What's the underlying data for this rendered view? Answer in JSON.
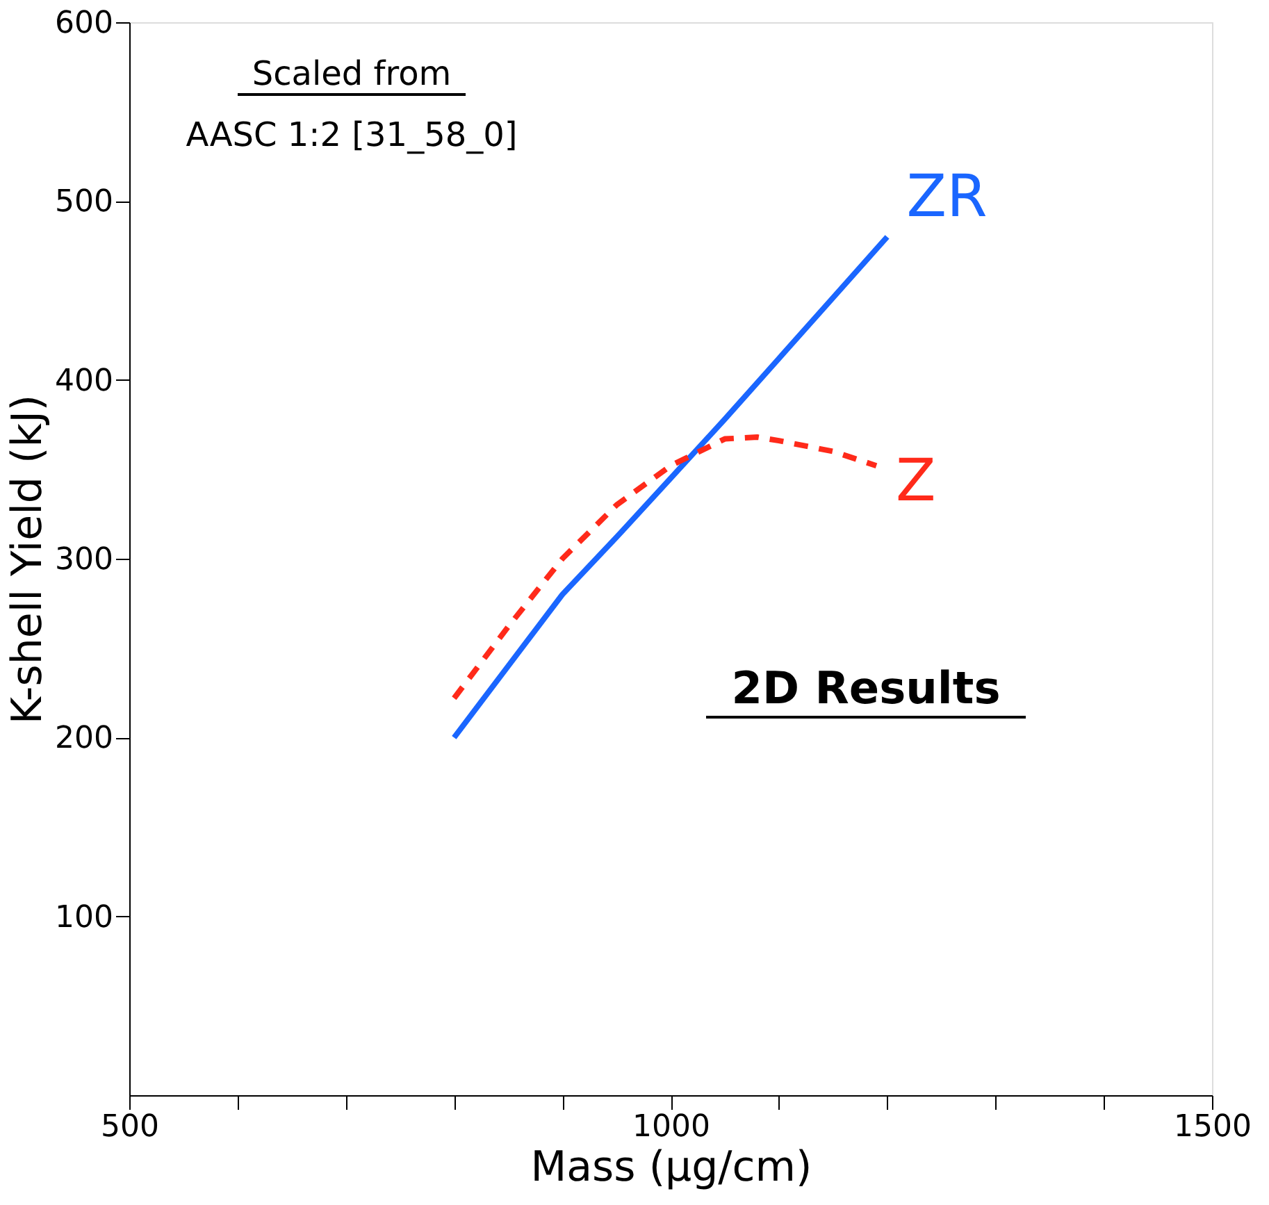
{
  "chart_data": {
    "type": "line",
    "xlabel": "Mass (µg/cm)",
    "ylabel": "K-shell Yield (kJ)",
    "series": [
      {
        "name": "ZR",
        "color": "#1a66ff",
        "line_style": "solid",
        "x": [
          800,
          850,
          900,
          950,
          1000,
          1050,
          1100,
          1150,
          1200
        ],
        "values": [
          200,
          240,
          280,
          312,
          345,
          378,
          412,
          446,
          480
        ]
      },
      {
        "name": "Z",
        "color": "#ff2a1a",
        "line_style": "dashed",
        "x": [
          800,
          850,
          900,
          950,
          1000,
          1050,
          1080,
          1100,
          1150,
          1190
        ],
        "values": [
          222,
          262,
          300,
          330,
          352,
          367,
          368,
          366,
          360,
          352
        ]
      }
    ],
    "annotations": [
      "Scaled from",
      "AASC 1:2  [31_58_0]",
      "2D Results"
    ],
    "xlim": [
      500,
      1500
    ],
    "xticks": [
      500,
      {
        "value": 600,
        "label": null
      },
      {
        "value": 700,
        "label": null
      },
      {
        "value": 800,
        "label": null
      },
      {
        "value": 900,
        "label": null
      },
      1000,
      {
        "value": 1100,
        "label": null
      },
      {
        "value": 1200,
        "label": null
      },
      {
        "value": 1300,
        "label": null
      },
      {
        "value": 1400,
        "label": null
      },
      1500
    ],
    "ylim": [
      0,
      600
    ],
    "yticks": [
      100,
      200,
      300,
      400,
      500,
      600
    ],
    "grid": false,
    "legend": false,
    "marker": "none"
  }
}
